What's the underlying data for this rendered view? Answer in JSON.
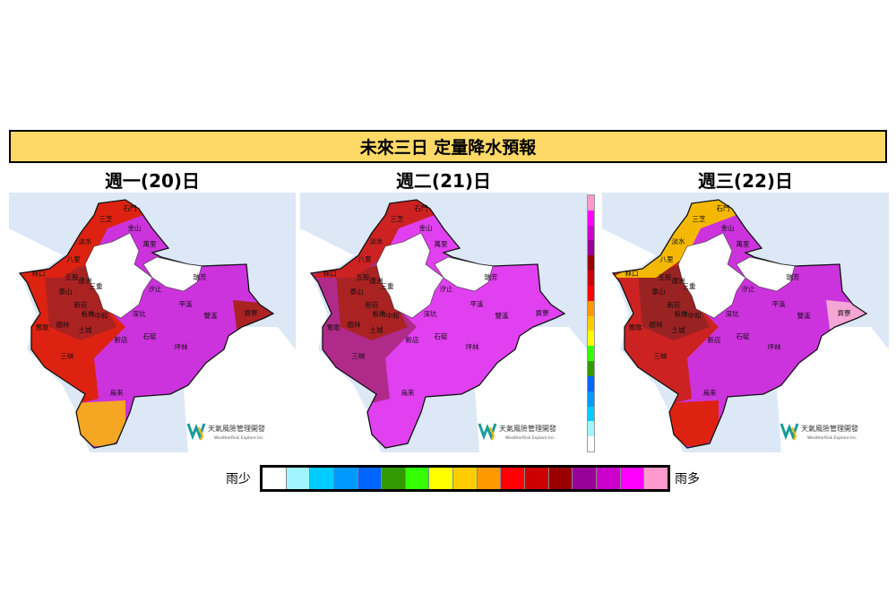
{
  "title": "未來三日  定量降水預報",
  "maps": [
    {
      "title": "週一(20)日",
      "base_color": "#cc33dd",
      "zones": {
        "west": "#dd2211",
        "west_inner": "#aa2222",
        "south": "#f5a623",
        "east_tip": "#aa2222",
        "north_coast": "#dd2211"
      }
    },
    {
      "title": "週二(21)日",
      "base_color": "#e040ef",
      "zones": {
        "west": "#b02a8a",
        "west_inner": "#aa2222",
        "south": "#e040ef",
        "east_tip": "#e040ef",
        "north_coast": "#cc2222"
      }
    },
    {
      "title": "週三(22)日",
      "base_color": "#cc33dd",
      "zones": {
        "west": "#cc2222",
        "west_inner": "#992222",
        "south": "#dd2211",
        "east_tip": "#f5a6d6",
        "north_coast": "#f5b800"
      }
    }
  ],
  "districts": [
    "石門",
    "三芝",
    "金山",
    "淡水",
    "萬里",
    "八里",
    "林口",
    "五股",
    "蘆洲",
    "泰山",
    "三重",
    "新莊",
    "中和",
    "板橋",
    "鶯歌",
    "樹林",
    "土城",
    "汐止",
    "瑞芳",
    "平溪",
    "深坑",
    "雙溪",
    "貢寮",
    "新店",
    "石碇",
    "坪林",
    "三峽",
    "烏來"
  ],
  "watermark": {
    "name": "天氣風險管理開發",
    "sub": "WeatherRisk Explore Inc."
  },
  "legend": {
    "low_label": "雨少",
    "high_label": "雨多",
    "colors": [
      "#ffffff",
      "#a0f5ff",
      "#00ccff",
      "#0099ff",
      "#0066ff",
      "#339900",
      "#33ff00",
      "#ffff00",
      "#ffcc00",
      "#ff9900",
      "#ff0000",
      "#cc0000",
      "#990000",
      "#990099",
      "#cc00cc",
      "#ff00ff",
      "#ff99cc"
    ]
  },
  "colors": {
    "sea": "#dce8f6",
    "title_bar": "#ffd966"
  }
}
